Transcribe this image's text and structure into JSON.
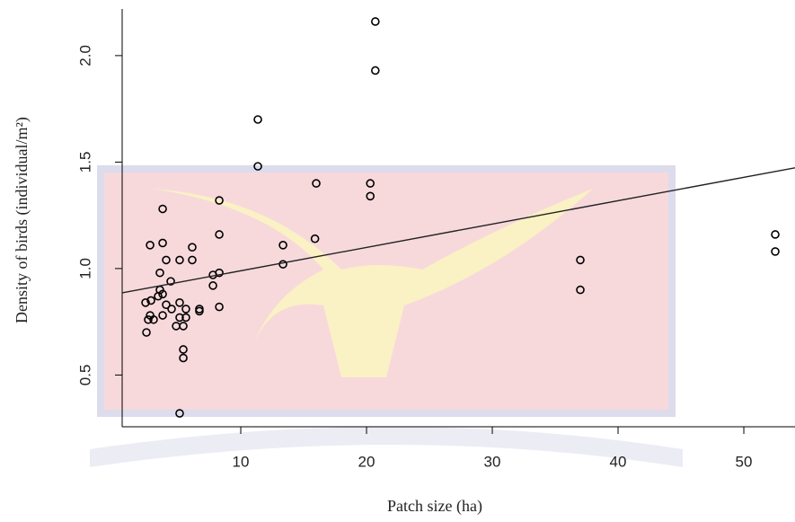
{
  "chart_data": {
    "type": "scatter",
    "x_label": "Patch size (ha)",
    "y_label": "Density of birds (individual/m²)",
    "x": [
      20.7,
      20.7,
      11.36,
      11.36,
      16.0,
      20.3,
      20.3,
      8.29,
      3.79,
      8.29,
      15.9,
      13.36,
      2.79,
      3.79,
      6.14,
      5.14,
      4.07,
      6.14,
      37.0,
      52.5,
      52.5,
      13.36,
      7.79,
      8.29,
      3.57,
      4.43,
      7.79,
      37.0,
      3.57,
      3.79,
      3.43,
      2.86,
      2.43,
      4.07,
      5.14,
      4.5,
      6.71,
      5.64,
      8.29,
      6.71,
      2.79,
      3.79,
      5.14,
      5.64,
      2.64,
      3.07,
      4.86,
      5.43,
      2.5,
      5.43,
      5.43,
      5.14
    ],
    "y": [
      2.16,
      1.93,
      1.7,
      1.48,
      1.4,
      1.4,
      1.34,
      1.32,
      1.28,
      1.16,
      1.14,
      1.11,
      1.11,
      1.12,
      1.1,
      1.04,
      1.04,
      1.04,
      1.04,
      1.16,
      1.08,
      1.02,
      0.97,
      0.98,
      0.98,
      0.94,
      0.92,
      0.9,
      0.9,
      0.88,
      0.87,
      0.85,
      0.84,
      0.83,
      0.84,
      0.81,
      0.81,
      0.81,
      0.82,
      0.8,
      0.78,
      0.78,
      0.77,
      0.77,
      0.76,
      0.76,
      0.73,
      0.73,
      0.7,
      0.62,
      0.58,
      0.32
    ],
    "color": "#000000",
    "fit": {
      "x": [
        0.57,
        54.07
      ],
      "y": [
        0.886,
        1.473
      ],
      "color": "#222222"
    },
    "xlim": [
      0.57,
      54.07
    ],
    "ylim": [
      0.257,
      2.24
    ],
    "xticks": [
      10,
      20,
      30,
      40,
      50
    ],
    "yticks": [
      0.5,
      {
        "value": 1,
        "label": "1.0"
      },
      1.5,
      {
        "value": 2,
        "label": "2.0"
      }
    ]
  }
}
